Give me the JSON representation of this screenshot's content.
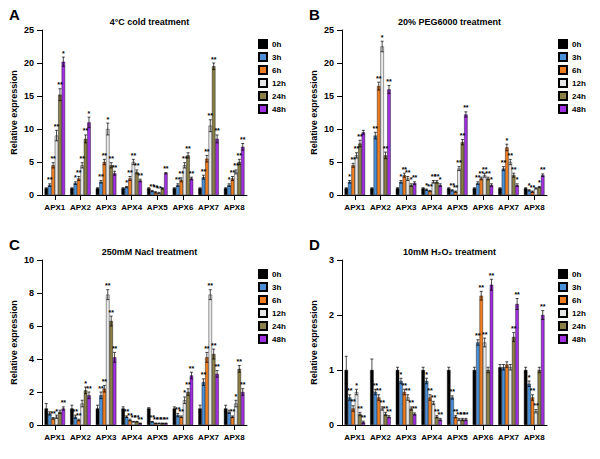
{
  "chart_data": [
    {
      "type": "bar",
      "label": "A",
      "title": "4°C cold treatment",
      "y_label": "Relative expression",
      "categories": [
        "APX1",
        "APX2",
        "APX3",
        "APX4",
        "APX5",
        "APX6",
        "APX7",
        "APX8"
      ],
      "ylim": [
        0,
        25
      ],
      "yticks": [
        0,
        5,
        10,
        15,
        20,
        25
      ],
      "grid": false,
      "legend": "top right",
      "series": [
        {
          "name": "0h",
          "color": "#000000",
          "values": [
            1,
            1,
            1,
            1,
            1,
            1,
            1,
            1
          ],
          "errors": [
            0.1,
            0.1,
            0.1,
            0.1,
            0.1,
            0.1,
            0.1,
            0.1
          ],
          "significance": [
            null,
            null,
            null,
            null,
            null,
            null,
            null,
            null
          ]
        },
        {
          "name": "3h",
          "color": "#4a90d9",
          "values": [
            1.5,
            1.8,
            2,
            1.2,
            0.6,
            1.5,
            2.7,
            1.5
          ],
          "errors": [
            0.2,
            0.2,
            0.2,
            0.1,
            0.1,
            0.2,
            0.3,
            0.2
          ],
          "significance": [
            "**",
            "*",
            "**",
            "*",
            "**",
            "**",
            "**",
            "*"
          ]
        },
        {
          "name": "6h",
          "color": "#ef7d22",
          "values": [
            4.5,
            2.5,
            5,
            2.5,
            0.4,
            2.3,
            5.5,
            2.5
          ],
          "errors": [
            0.4,
            0.3,
            0.4,
            0.3,
            0.1,
            0.3,
            0.5,
            0.3
          ],
          "significance": [
            "**",
            "**",
            "**",
            "**",
            "**",
            "**",
            "**",
            "**"
          ]
        },
        {
          "name": "12h",
          "color": "#e8e8e8",
          "values": [
            9,
            4.5,
            10,
            5,
            0.3,
            4.5,
            10.5,
            3.5
          ],
          "errors": [
            0.8,
            0.4,
            0.9,
            0.4,
            0.1,
            0.4,
            0.9,
            0.3
          ],
          "significance": [
            "**",
            "**",
            "*",
            "**",
            "**",
            "**",
            "**",
            "**"
          ]
        },
        {
          "name": "24h",
          "color": "#8a7f45",
          "values": [
            15.2,
            8.5,
            4.5,
            3.5,
            1,
            6,
            19.5,
            5
          ],
          "errors": [
            0.9,
            0.6,
            0.4,
            0.3,
            0.1,
            0.4,
            0.5,
            0.4
          ],
          "significance": [
            "**",
            "**",
            "**",
            "**",
            null,
            "**",
            "**",
            "**"
          ]
        },
        {
          "name": "48h",
          "color": "#a030e0",
          "values": [
            20.2,
            11,
            3.3,
            2.2,
            3.3,
            2.5,
            8.5,
            7.3
          ],
          "errors": [
            0.7,
            0.8,
            0.3,
            0.2,
            0.1,
            0.2,
            0.6,
            0.5
          ],
          "significance": [
            "*",
            "*",
            "**",
            "**",
            "**",
            "**",
            "**",
            "**"
          ]
        }
      ]
    },
    {
      "type": "bar",
      "label": "B",
      "title": "20% PEG6000 treatment",
      "y_label": "Relative expression",
      "categories": [
        "APX1",
        "APX2",
        "APX3",
        "APX4",
        "APX5",
        "APX6",
        "APX7",
        "APX8"
      ],
      "ylim": [
        0,
        25
      ],
      "yticks": [
        0,
        5,
        10,
        15,
        20,
        25
      ],
      "grid": false,
      "legend": "top right",
      "series": [
        {
          "name": "0h",
          "color": "#000000",
          "values": [
            1,
            1,
            1,
            1,
            1,
            1,
            1,
            1
          ],
          "errors": [
            0.1,
            0.1,
            0.1,
            0.1,
            0.1,
            0.1,
            0.1,
            0.1
          ],
          "significance": [
            null,
            null,
            null,
            null,
            null,
            null,
            null,
            null
          ]
        },
        {
          "name": "3h",
          "color": "#4a90d9",
          "values": [
            2,
            9,
            2,
            0.8,
            0.7,
            1.8,
            4,
            0.7
          ],
          "errors": [
            0.2,
            0.5,
            0.2,
            0.1,
            0.1,
            0.2,
            0.3,
            0.1
          ],
          "significance": [
            "*",
            "**",
            "*",
            "*",
            "**",
            "**",
            "**",
            "*"
          ]
        },
        {
          "name": "6h",
          "color": "#ef7d22",
          "values": [
            4.5,
            16.5,
            3,
            0.6,
            0.5,
            2.5,
            7.2,
            0.5
          ],
          "errors": [
            0.3,
            0.6,
            0.3,
            0.1,
            0.1,
            0.2,
            0.5,
            0.1
          ],
          "significance": [
            "**",
            "**",
            "**",
            "**",
            "**",
            "**",
            "*",
            "**"
          ]
        },
        {
          "name": "12h",
          "color": "#e8e8e8",
          "values": [
            6,
            22.5,
            2.5,
            2,
            4,
            3,
            5,
            1
          ],
          "errors": [
            0.4,
            0.8,
            0.3,
            0.2,
            0.3,
            0.3,
            0.4,
            0.1
          ],
          "significance": [
            "**",
            "*",
            "**",
            "**",
            "**",
            "**",
            "**",
            null
          ]
        },
        {
          "name": "24h",
          "color": "#8a7f45",
          "values": [
            7.8,
            6,
            1.5,
            2,
            8,
            2.5,
            3,
            1.2
          ],
          "errors": [
            0.5,
            0.5,
            0.2,
            0.2,
            0.4,
            0.2,
            0.3,
            0.1
          ],
          "significance": [
            "**",
            "**",
            "*",
            "**",
            "**",
            "**",
            "**",
            "*"
          ]
        },
        {
          "name": "48h",
          "color": "#a030e0",
          "values": [
            9.5,
            16,
            1.8,
            1.5,
            12.2,
            1.5,
            1.5,
            3
          ],
          "errors": [
            0.3,
            0.6,
            0.2,
            0.2,
            0.4,
            0.2,
            0.2,
            0.2
          ],
          "significance": [
            null,
            "**",
            "**",
            "*",
            "**",
            "*",
            "*",
            "**"
          ]
        }
      ]
    },
    {
      "type": "bar",
      "label": "C",
      "title": "250mM Nacl treatment",
      "y_label": "Relative expression",
      "categories": [
        "APX1",
        "APX2",
        "APX3",
        "APX4",
        "APX5",
        "APX6",
        "APX7",
        "APX8"
      ],
      "ylim": [
        0,
        10
      ],
      "yticks": [
        0,
        2,
        4,
        6,
        8,
        10
      ],
      "grid": false,
      "legend": "top right",
      "series": [
        {
          "name": "0h",
          "color": "#000000",
          "values": [
            1,
            1,
            1,
            1,
            1,
            1,
            1,
            1
          ],
          "errors": [
            0.3,
            0.2,
            0.2,
            0.1,
            0.05,
            0.1,
            0.2,
            0.2
          ],
          "significance": [
            null,
            null,
            null,
            null,
            null,
            null,
            null,
            null
          ]
        },
        {
          "name": "3h",
          "color": "#4a90d9",
          "values": [
            0.7,
            0.5,
            1.8,
            0.5,
            0.2,
            0.6,
            2.6,
            0.8
          ],
          "errors": [
            0.1,
            0.1,
            0.2,
            0.05,
            0.02,
            0.1,
            0.2,
            0.1
          ],
          "significance": [
            null,
            "**",
            "**",
            "**",
            "**",
            "**",
            "**",
            null
          ]
        },
        {
          "name": "6h",
          "color": "#ef7d22",
          "values": [
            0.4,
            0.3,
            2.2,
            0.3,
            0.1,
            0.5,
            4.1,
            0.5
          ],
          "errors": [
            0.05,
            0.05,
            0.2,
            0.05,
            0.02,
            0.05,
            0.3,
            0.05
          ],
          "significance": [
            "**",
            "**",
            "**",
            "**",
            "**",
            "**",
            "**",
            "**"
          ]
        },
        {
          "name": "12h",
          "color": "#e8e8e8",
          "values": [
            0.5,
            1.3,
            7.9,
            0.2,
            0.1,
            1.5,
            7.9,
            1.3
          ],
          "errors": [
            0.1,
            0.2,
            0.3,
            0.02,
            0.02,
            0.2,
            0.3,
            0.2
          ],
          "significance": [
            "*",
            null,
            "**",
            "**",
            "**",
            "*",
            "**",
            "*"
          ]
        },
        {
          "name": "24h",
          "color": "#8a7f45",
          "values": [
            0.8,
            2.1,
            6.3,
            0.2,
            0.1,
            2,
            4.3,
            3.4
          ],
          "errors": [
            0.1,
            0.2,
            0.3,
            0.02,
            0.02,
            0.2,
            0.3,
            0.2
          ],
          "significance": [
            null,
            "*",
            "**",
            "**",
            "**",
            "**",
            "**",
            "**"
          ]
        },
        {
          "name": "48h",
          "color": "#a030e0",
          "values": [
            1,
            1.8,
            4.1,
            0.1,
            0.1,
            3,
            3.1,
            2
          ],
          "errors": [
            0.1,
            0.2,
            0.3,
            0.02,
            0.02,
            0.2,
            0.2,
            0.2
          ],
          "significance": [
            "**",
            "**",
            "**",
            "**",
            "**",
            "**",
            "**",
            "**"
          ]
        }
      ]
    },
    {
      "type": "bar",
      "label": "D",
      "title": "10mM H₂O₂ treatment",
      "y_label": "Relative expression",
      "categories": [
        "APX1",
        "APX2",
        "APX3",
        "APX4",
        "APX5",
        "APX6",
        "APX7",
        "APX8"
      ],
      "ylim": [
        0,
        3
      ],
      "yticks": [
        0,
        1,
        2,
        3
      ],
      "grid": false,
      "legend": "top right",
      "series": [
        {
          "name": "0h",
          "color": "#000000",
          "values": [
            1,
            1,
            1,
            1,
            1,
            1,
            1.05,
            1
          ],
          "errors": [
            0.25,
            0.2,
            0.05,
            0.05,
            0.05,
            0.05,
            0.05,
            0.05
          ],
          "significance": [
            null,
            null,
            null,
            null,
            null,
            null,
            null,
            null
          ]
        },
        {
          "name": "3h",
          "color": "#4a90d9",
          "values": [
            0.5,
            0.6,
            0.8,
            0.8,
            0.5,
            1.5,
            1.05,
            0.75
          ],
          "errors": [
            0.05,
            0.05,
            0.05,
            0.05,
            0.03,
            0.05,
            0.05,
            0.05
          ],
          "significance": [
            "**",
            "**",
            "*",
            "*",
            "**",
            "**",
            null,
            "*"
          ]
        },
        {
          "name": "6h",
          "color": "#ef7d22",
          "values": [
            0.3,
            0.5,
            0.6,
            0.5,
            0.15,
            2.35,
            1.1,
            0.5
          ],
          "errors": [
            0.05,
            0.05,
            0.05,
            0.05,
            0.02,
            0.08,
            0.05,
            0.05
          ],
          "significance": [
            "**",
            "**",
            "**",
            "**",
            "**",
            "**",
            null,
            "**"
          ]
        },
        {
          "name": "12h",
          "color": "#e8e8e8",
          "values": [
            0.6,
            0.3,
            0.5,
            0.4,
            0.1,
            1.5,
            1.05,
            0.25
          ],
          "errors": [
            0.05,
            0.03,
            0.05,
            0.03,
            0.02,
            0.08,
            0.05,
            0.03
          ],
          "significance": [
            "*",
            "**",
            "**",
            "**",
            "**",
            "**",
            null,
            "**"
          ]
        },
        {
          "name": "24h",
          "color": "#8a7f45",
          "values": [
            0.2,
            0.2,
            0.3,
            0.15,
            0.1,
            1,
            1.6,
            1
          ],
          "errors": [
            0.03,
            0.03,
            0.03,
            0.02,
            0.02,
            0.05,
            0.08,
            0.05
          ],
          "significance": [
            "**",
            "**",
            "**",
            "**",
            "**",
            null,
            "**",
            null
          ]
        },
        {
          "name": "48h",
          "color": "#a030e0",
          "values": [
            0.05,
            0.15,
            0.2,
            0.1,
            0.1,
            2.55,
            2.2,
            2
          ],
          "errors": [
            0.02,
            0.02,
            0.02,
            0.02,
            0.02,
            0.1,
            0.1,
            0.08
          ],
          "significance": [
            "**",
            "**",
            "**",
            "**",
            "**",
            "**",
            "**",
            "**"
          ]
        }
      ]
    }
  ]
}
